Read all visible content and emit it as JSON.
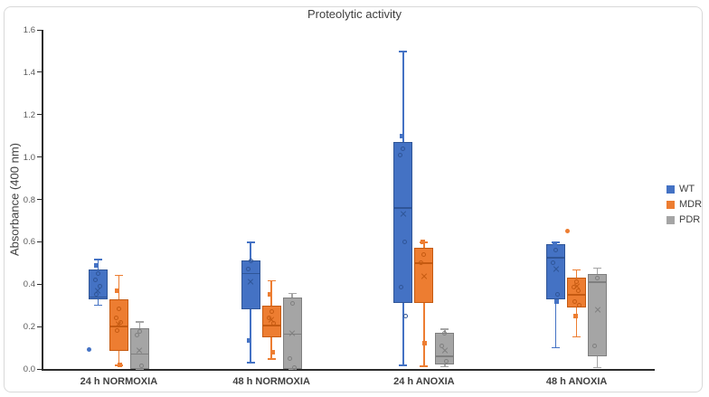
{
  "chart_data": {
    "type": "boxplot",
    "title": "Proteolytic activity",
    "xlabel": "",
    "ylabel": "Absorbance (400 nm)",
    "ylim": [
      0,
      1.6
    ],
    "ytick_step": 0.2,
    "grid": false,
    "legend_position": "right",
    "categories": [
      "24 h NORMOXIA",
      "48 h NORMOXIA",
      "24 h ANOXIA",
      "48 h ANOXIA"
    ],
    "series": [
      {
        "name": "WT",
        "color": "#4472C4",
        "dark_color": "#2F5597",
        "boxes": [
          {
            "whisker_low": 0.3,
            "q1": 0.33,
            "median": 0.34,
            "mean": 0.37,
            "q3": 0.47,
            "whisker_high": 0.52,
            "points": [
              0.45,
              0.42,
              0.39,
              0.35
            ],
            "squares": [
              0.49
            ],
            "outliers": [
              0.09
            ]
          },
          {
            "whisker_low": 0.03,
            "q1": 0.28,
            "median": 0.45,
            "mean": 0.41,
            "q3": 0.51,
            "whisker_high": 0.6,
            "points": [
              0.51,
              0.47
            ],
            "squares": [
              0.135
            ],
            "outliers": []
          },
          {
            "whisker_low": 0.015,
            "q1": 0.31,
            "median": 0.76,
            "mean": 0.73,
            "q3": 1.07,
            "whisker_high": 1.5,
            "points": [
              1.04,
              1.01,
              0.6,
              0.385,
              0.25
            ],
            "squares": [
              1.1
            ],
            "outliers": []
          },
          {
            "whisker_low": 0.1,
            "q1": 0.33,
            "median": 0.525,
            "mean": 0.47,
            "q3": 0.59,
            "whisker_high": 0.6,
            "points": [
              0.56,
              0.5,
              0.35
            ],
            "squares": [
              0.59,
              0.32
            ],
            "outliers": []
          }
        ]
      },
      {
        "name": "MDR",
        "color": "#ED7D31",
        "dark_color": "#C55A11",
        "boxes": [
          {
            "whisker_low": 0.015,
            "q1": 0.085,
            "median": 0.2,
            "mean": 0.21,
            "q3": 0.33,
            "whisker_high": 0.445,
            "points": [
              0.285,
              0.24,
              0.22,
              0.18
            ],
            "squares": [
              0.37,
              0.02
            ],
            "outliers": []
          },
          {
            "whisker_low": 0.046,
            "q1": 0.15,
            "median": 0.205,
            "mean": 0.23,
            "q3": 0.3,
            "whisker_high": 0.42,
            "points": [
              0.27,
              0.24,
              0.215
            ],
            "squares": [
              0.35,
              0.08
            ],
            "outliers": []
          },
          {
            "whisker_low": 0.013,
            "q1": 0.31,
            "median": 0.5,
            "mean": 0.435,
            "q3": 0.57,
            "whisker_high": 0.6,
            "points": [
              0.54,
              0.5
            ],
            "squares": [
              0.6,
              0.123
            ],
            "outliers": []
          },
          {
            "whisker_low": 0.15,
            "q1": 0.29,
            "median": 0.35,
            "mean": 0.39,
            "q3": 0.43,
            "whisker_high": 0.47,
            "points": [
              0.41,
              0.385,
              0.37,
              0.32,
              0.3
            ],
            "squares": [
              0.25
            ],
            "outliers": [
              0.65
            ]
          }
        ]
      },
      {
        "name": "PDR",
        "color": "#A5A5A5",
        "dark_color": "#7F7F7F",
        "boxes": [
          {
            "whisker_low": 0.0,
            "q1": 0.0,
            "median": 0.07,
            "mean": 0.085,
            "q3": 0.19,
            "whisker_high": 0.225,
            "points": [
              0.175,
              0.16,
              0.017
            ],
            "squares": [],
            "outliers": []
          },
          {
            "whisker_low": 0.0,
            "q1": 0.0,
            "median": 0.165,
            "mean": 0.17,
            "q3": 0.335,
            "whisker_high": 0.36,
            "points": [
              0.31,
              0.05,
              0.005
            ],
            "squares": [],
            "outliers": []
          },
          {
            "whisker_low": 0.01,
            "q1": 0.02,
            "median": 0.06,
            "mean": 0.085,
            "q3": 0.17,
            "whisker_high": 0.19,
            "points": [
              0.17,
              0.11,
              0.035
            ],
            "squares": [],
            "outliers": []
          },
          {
            "whisker_low": 0.005,
            "q1": 0.06,
            "median": 0.41,
            "mean": 0.28,
            "q3": 0.45,
            "whisker_high": 0.48,
            "points": [
              0.43,
              0.11
            ],
            "squares": [],
            "outliers": []
          }
        ]
      }
    ]
  },
  "colors": {
    "frame_border": "#D9D9D9",
    "axis_line": "#2B2B2B",
    "tick_text": "#595959",
    "label_text": "#404040",
    "background": "#FFFFFF"
  }
}
